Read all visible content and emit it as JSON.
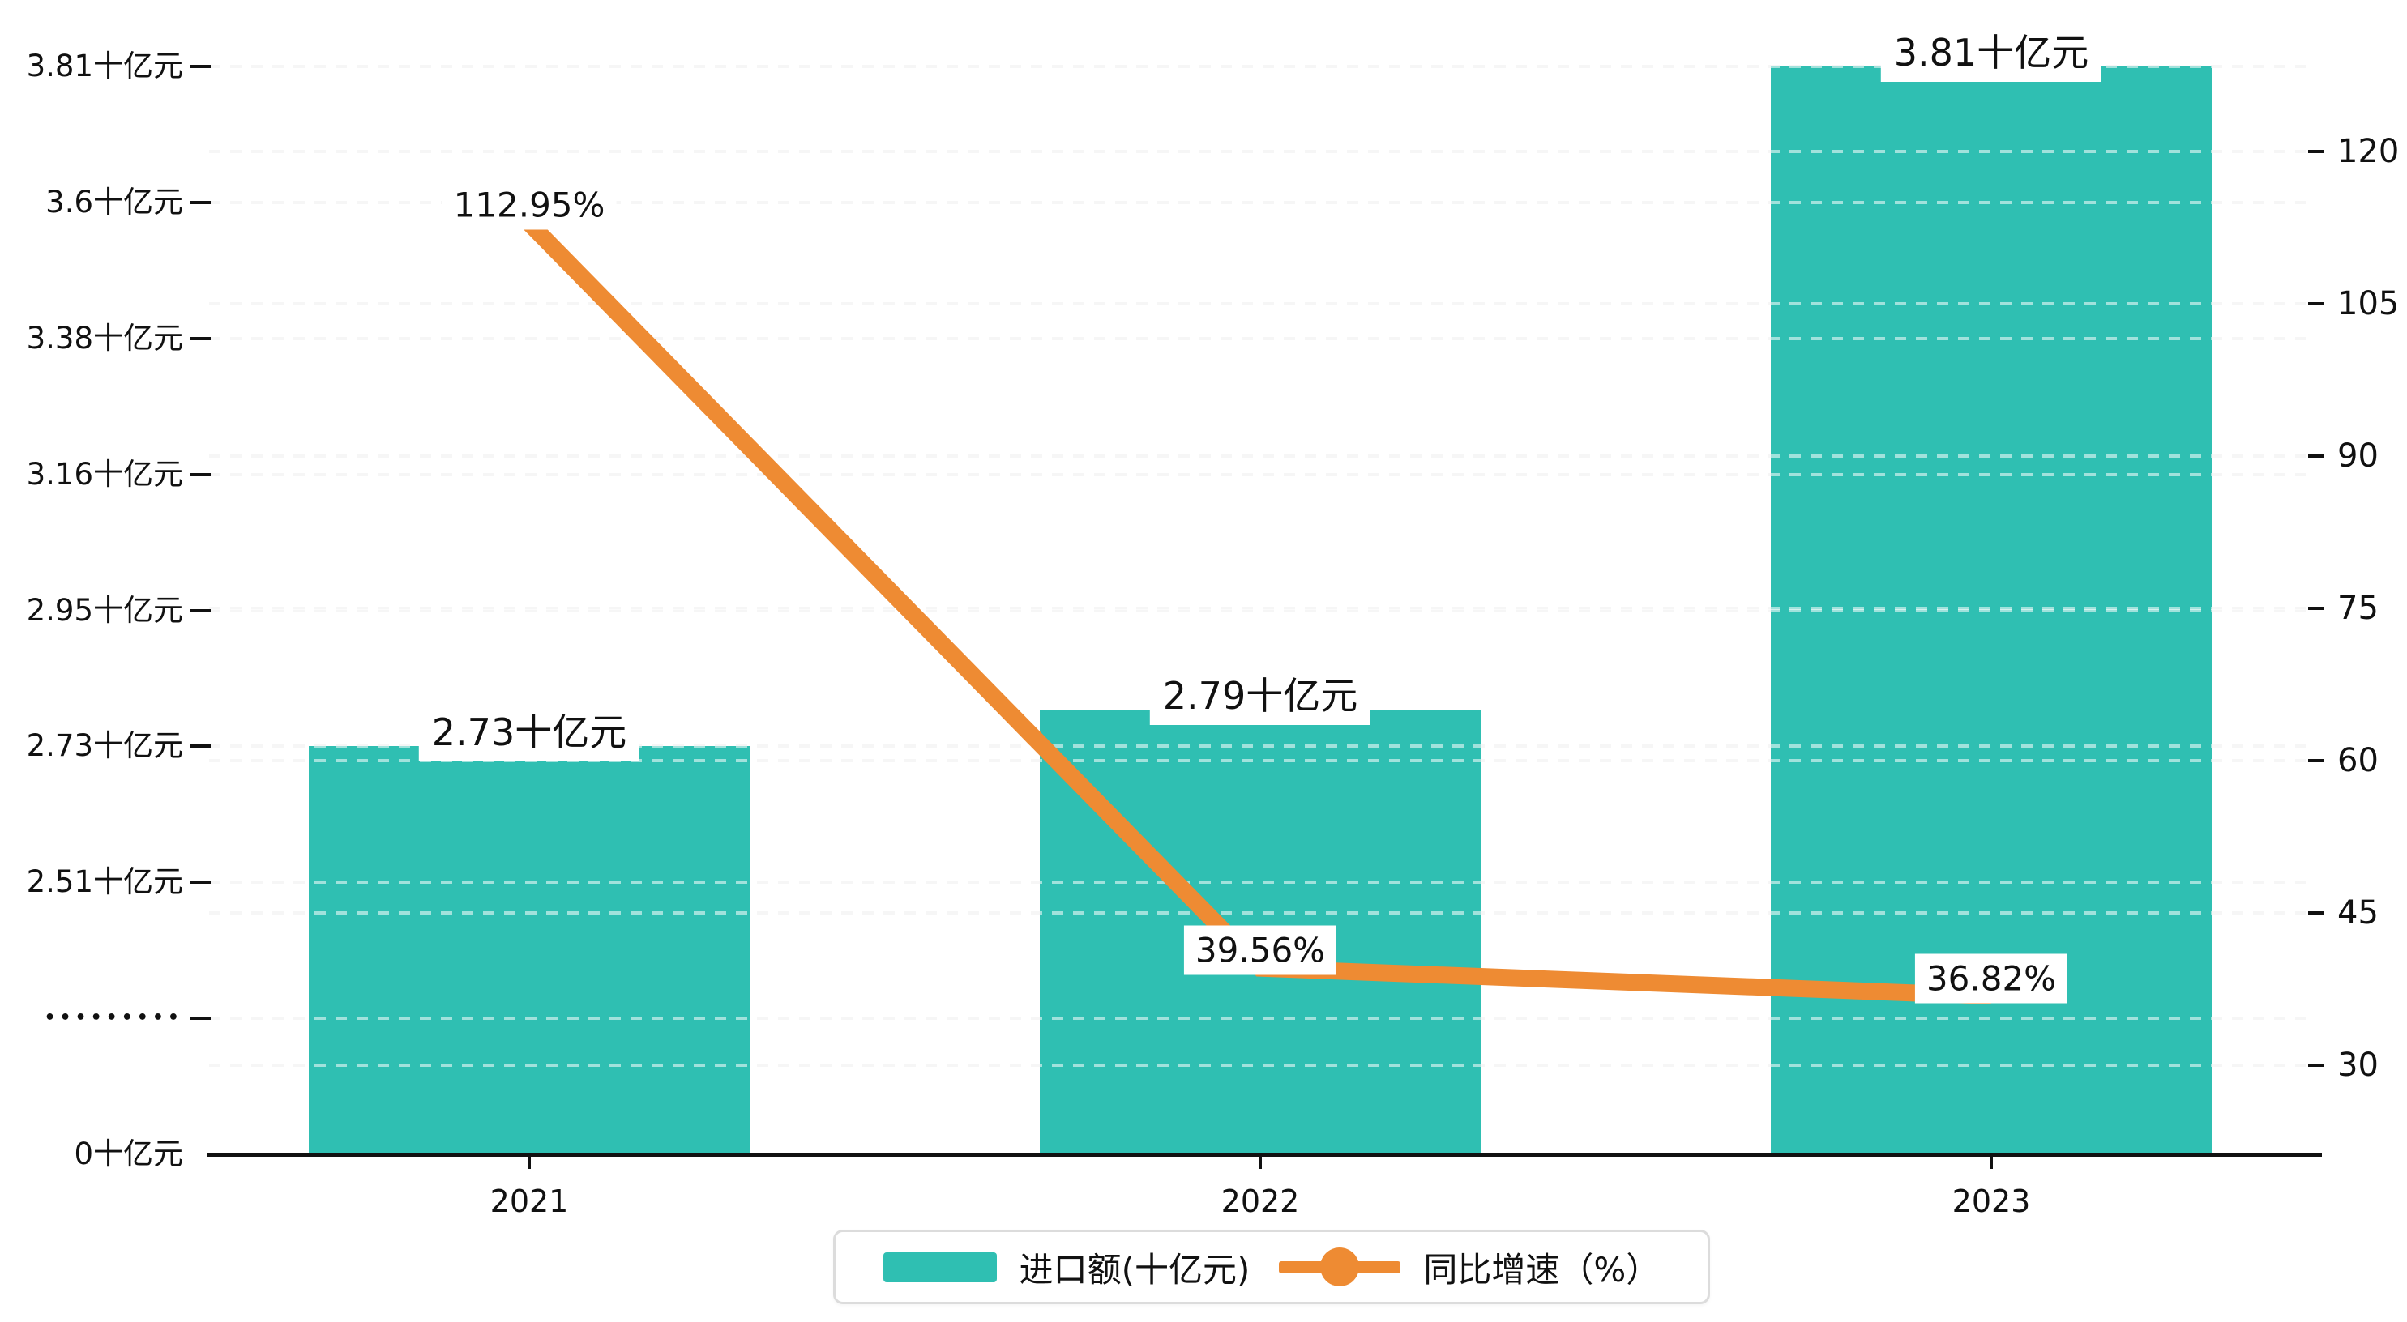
{
  "chart_data": {
    "type": "bar+line",
    "categories": [
      "2021",
      "2022",
      "2023"
    ],
    "series": [
      {
        "name": "进口额(十亿元)",
        "type": "bar",
        "axis": "left",
        "values": [
          2.73,
          2.79,
          3.81
        ],
        "point_labels": [
          "2.73十亿元",
          "2.79十亿元",
          "3.81十亿元"
        ],
        "color": "#2FBFB2"
      },
      {
        "name": "同比增速（%）",
        "type": "line",
        "axis": "right",
        "values": [
          112.95,
          39.56,
          36.82
        ],
        "point_labels": [
          "112.95%",
          "39.56%",
          "36.82%"
        ],
        "color": "#EE8B33"
      }
    ],
    "left_axis": {
      "unit": "十亿元",
      "tick_labels": [
        "3.81十亿元",
        "3.6十亿元",
        "3.38十亿元",
        "3.16十亿元",
        "2.95十亿元",
        "2.73十亿元",
        "2.51十亿元",
        "•••••••••",
        "0十亿元"
      ],
      "tick_values": [
        3.81,
        3.6,
        3.38,
        3.16,
        2.95,
        2.73,
        2.51,
        null,
        0
      ],
      "has_break": true,
      "break_index": 7
    },
    "right_axis": {
      "unit": "%",
      "tick_labels": [
        "120",
        "105",
        "90",
        "75",
        "60",
        "45",
        "30"
      ],
      "tick_values": [
        120,
        105,
        90,
        75,
        60,
        45,
        30
      ]
    },
    "grid": true,
    "legend_position": "bottom-center"
  },
  "legend": {
    "items": [
      {
        "label": "进口额(十亿元)",
        "marker": "bar-swatch",
        "color": "#2FBFB2"
      },
      {
        "label": "同比增速（%）",
        "marker": "line-dot",
        "color": "#EE8B33"
      }
    ]
  },
  "colors": {
    "bar": "#2FBFB2",
    "line": "#EE8B33",
    "grid": "#ECECEC",
    "axis": "#111111",
    "text": "#111111",
    "label_bg": "#FFFFFF",
    "legend_border": "#DCDCDC"
  }
}
